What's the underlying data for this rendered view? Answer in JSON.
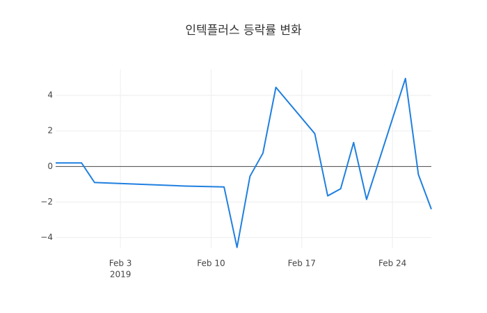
{
  "chart_data": {
    "type": "line",
    "title": "인텍플러스 등락률 변화",
    "x": [
      "2019-01-29",
      "2019-01-31",
      "2019-02-01",
      "2019-02-08",
      "2019-02-11",
      "2019-02-12",
      "2019-02-13",
      "2019-02-14",
      "2019-02-15",
      "2019-02-18",
      "2019-02-19",
      "2019-02-20",
      "2019-02-21",
      "2019-02-22",
      "2019-02-25",
      "2019-02-26",
      "2019-02-27"
    ],
    "series": [
      {
        "color": "#1f7fe0",
        "values": [
          0.2,
          0.2,
          -0.9,
          -1.1,
          -1.15,
          -4.55,
          -0.55,
          0.75,
          4.45,
          1.85,
          -1.65,
          -1.25,
          1.35,
          -1.85,
          4.95,
          -0.45,
          -2.4
        ]
      }
    ],
    "xlim": [
      "2019-01-29",
      "2019-02-27"
    ],
    "xticks": [
      {
        "value": "2019-02-03",
        "label": "Feb 3"
      },
      {
        "value": "2019-02-10",
        "label": "Feb 10"
      },
      {
        "value": "2019-02-17",
        "label": "Feb 17"
      },
      {
        "value": "2019-02-24",
        "label": "Feb 24"
      }
    ],
    "x_year_label": "2019",
    "ylim": [
      -4.6,
      5.45
    ],
    "yticks": [
      {
        "value": -4,
        "label": "−4"
      },
      {
        "value": -2,
        "label": "−2"
      },
      0,
      2,
      4
    ],
    "grid": true
  }
}
